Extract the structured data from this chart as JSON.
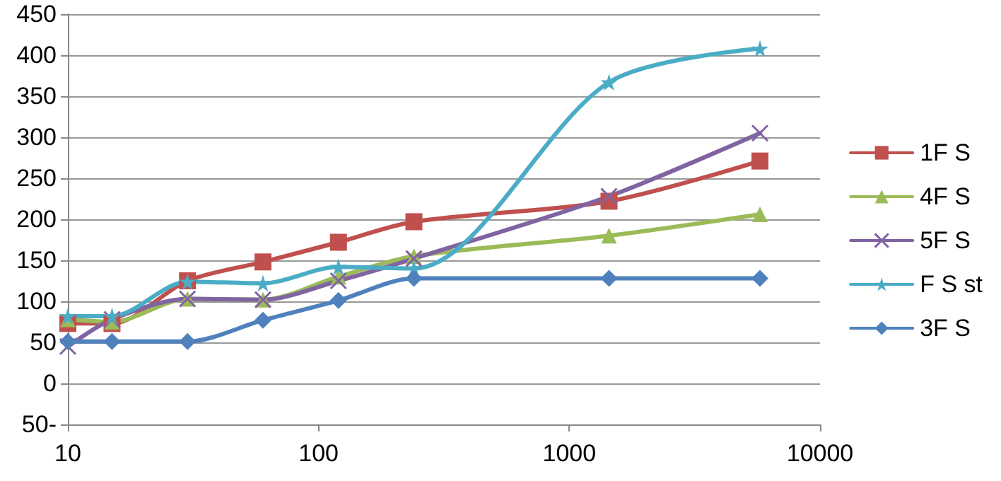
{
  "chart_data": {
    "type": "line",
    "log": "x",
    "x": [
      10,
      15,
      30,
      60,
      120,
      240,
      1440,
      5760
    ],
    "series": [
      {
        "name": "1F S",
        "color": "#c0504d",
        "marker": "square",
        "values": [
          73,
          73,
          125,
          148,
          172,
          197,
          222,
          271
        ]
      },
      {
        "name": "4F S",
        "color": "#9bbb59",
        "marker": "triangle",
        "values": [
          78,
          75,
          103,
          102,
          130,
          155,
          180,
          206
        ]
      },
      {
        "name": "5F S",
        "color": "#8064a2",
        "marker": "cross",
        "values": [
          45,
          78,
          103,
          102,
          125,
          152,
          228,
          305
        ]
      },
      {
        "name": "F S st",
        "color": "#4bacc6",
        "marker": "star",
        "values": [
          82,
          82,
          124,
          122,
          142,
          140,
          367,
          408
        ]
      },
      {
        "name": "3F S",
        "color": "#4f81bd",
        "marker": "diamond",
        "values": [
          51,
          51,
          51,
          77,
          101,
          128,
          128,
          128
        ]
      }
    ],
    "xlim": [
      10,
      10000
    ],
    "xticks": [
      10,
      100,
      1000,
      10000
    ],
    "ylim": [
      -50,
      450
    ],
    "yticks": [
      {
        "value": -50,
        "label": "50-"
      },
      0,
      50,
      100,
      150,
      200,
      250,
      300,
      350,
      400,
      450
    ],
    "grid": "y",
    "legend": "right",
    "line_style": "solid"
  }
}
